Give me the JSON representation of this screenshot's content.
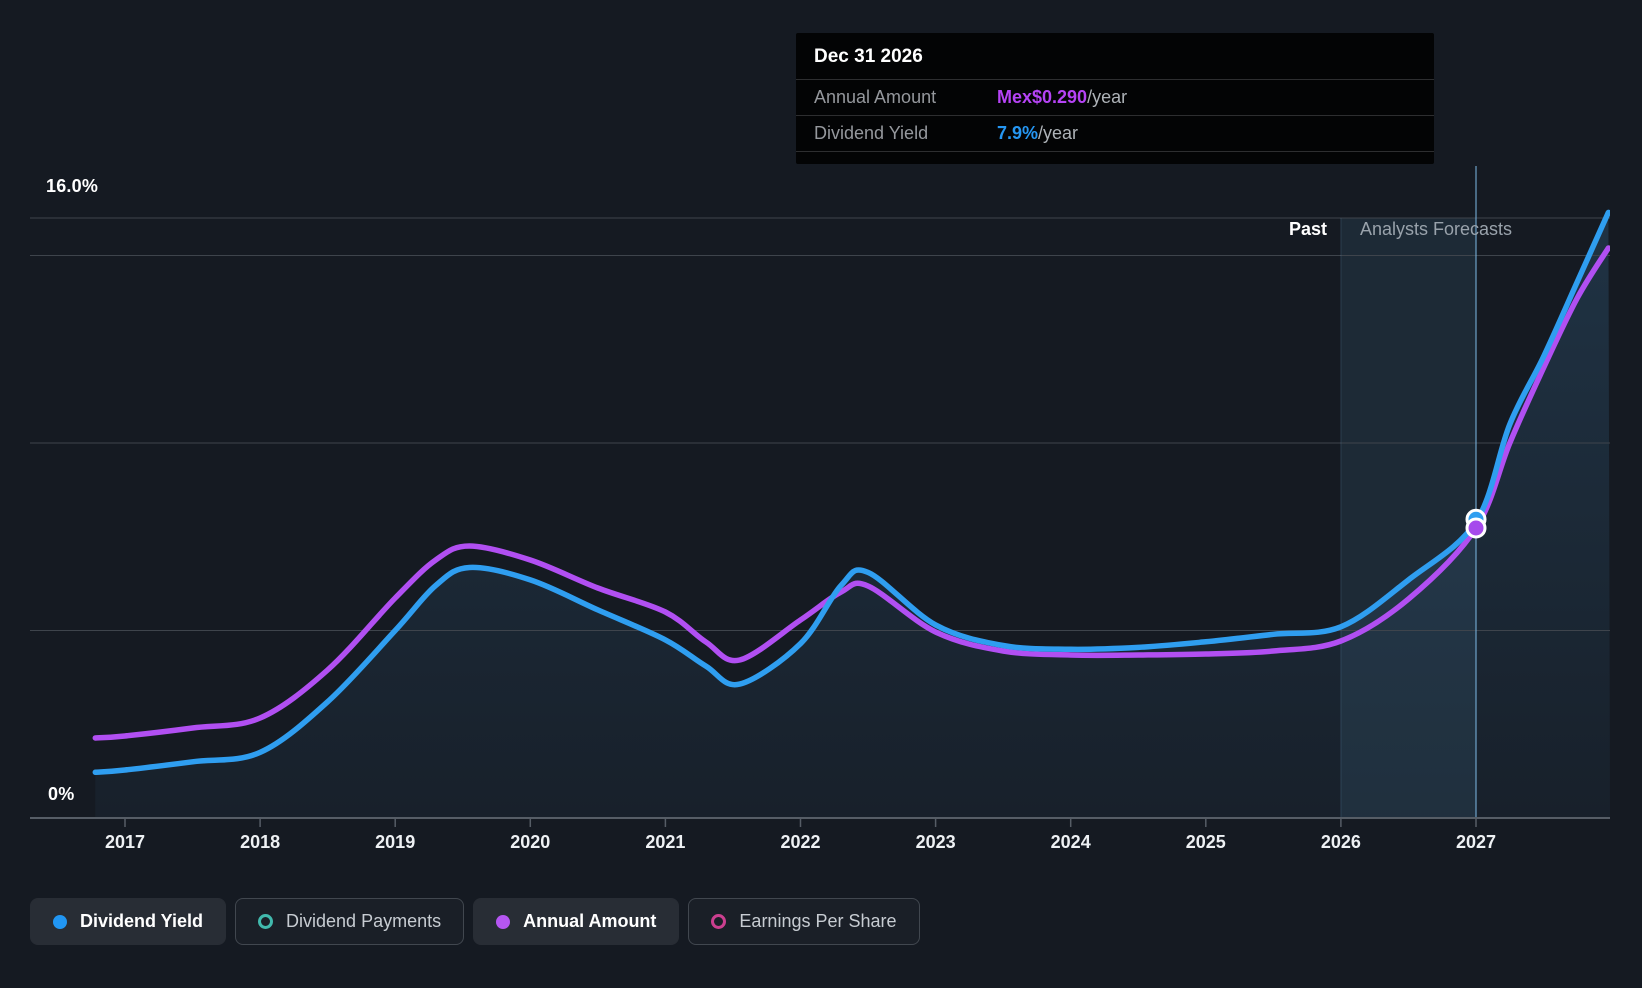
{
  "colors": {
    "background": "#151a22",
    "gridline": "#3e444c",
    "axis": "#565d66",
    "dividend_yield_blue": "#2f9ef0",
    "annual_amount_purple": "#b14ff2",
    "annual_amount_marker": "#a649ec",
    "dividend_payments_teal": "#41b9ad",
    "earnings_per_share_pink": "#cb3f8f",
    "area_fill": "#4a96cd",
    "hover_band": "#66aadf",
    "hover_line": "#7db9e6",
    "tooltip_value_purple": "#b543f5",
    "tooltip_value_blue": "#2596f2"
  },
  "tooltip": {
    "title": "Dec 31 2026",
    "rows": [
      {
        "label": "Annual Amount",
        "value": "Mex$0.290",
        "suffix": "/year",
        "value_color": "#b543f5"
      },
      {
        "label": "Dividend Yield",
        "value": "7.9%",
        "suffix": "/year",
        "value_color": "#2596f2"
      }
    ]
  },
  "chart": {
    "past_label": "Past",
    "forecast_label": "Analysts Forecasts",
    "y_axis": {
      "top_label": "16.0%",
      "bottom_label": "0%"
    }
  },
  "legend": {
    "items": [
      {
        "label": "Dividend Yield",
        "color": "#2196f3",
        "style": "filled",
        "active": true
      },
      {
        "label": "Dividend Payments",
        "color": "#41b9ad",
        "style": "ring",
        "active": false
      },
      {
        "label": "Annual Amount",
        "color": "#b556f2",
        "style": "filled",
        "active": true
      },
      {
        "label": "Earnings Per Share",
        "color": "#cb3f8f",
        "style": "ring",
        "active": false
      }
    ]
  },
  "chart_data": {
    "type": "line",
    "title": "",
    "x_axis": {
      "labels": [
        "2017",
        "2018",
        "2019",
        "2020",
        "2021",
        "2022",
        "2023",
        "2024",
        "2025",
        "2026",
        "2027"
      ],
      "first_label_year": 2017,
      "range_years": [
        2016.78,
        2027.98
      ]
    },
    "y_axis_left": {
      "label": "Dividend Yield",
      "unit": "%",
      "range": [
        0,
        16
      ],
      "gridlines_percent": [
        16,
        15,
        10,
        5
      ],
      "top_tick_label": "16.0%",
      "bottom_tick_label": "0%"
    },
    "divider": {
      "past_label": "Past",
      "forecast_label": "Analysts Forecasts",
      "forecast_start_year": 2026,
      "hover_year": 2027,
      "hover_date": "Dec 31 2026"
    },
    "legend_position": "bottom",
    "grid": true,
    "series": [
      {
        "name": "Dividend Yield",
        "scale": "percent",
        "unit": "%",
        "color": "#2f9ef0",
        "marker": {
          "year": 2027,
          "value": 7.9,
          "label": "7.9%/year"
        },
        "points": [
          [
            2016.78,
            1.22
          ],
          [
            2017,
            1.28
          ],
          [
            2017.5,
            1.5
          ],
          [
            2018,
            1.75
          ],
          [
            2018.5,
            3.1
          ],
          [
            2019,
            5.0
          ],
          [
            2019.3,
            6.2
          ],
          [
            2019.55,
            6.68
          ],
          [
            2020,
            6.35
          ],
          [
            2020.5,
            5.55
          ],
          [
            2021,
            4.75
          ],
          [
            2021.3,
            4.05
          ],
          [
            2021.55,
            3.57
          ],
          [
            2022,
            4.65
          ],
          [
            2022.3,
            6.2
          ],
          [
            2022.5,
            6.55
          ],
          [
            2023,
            5.15
          ],
          [
            2023.5,
            4.6
          ],
          [
            2024,
            4.5
          ],
          [
            2024.5,
            4.55
          ],
          [
            2025,
            4.7
          ],
          [
            2025.5,
            4.9
          ],
          [
            2026,
            5.1
          ],
          [
            2026.5,
            6.35
          ],
          [
            2027,
            7.9
          ],
          [
            2027.25,
            10.5
          ],
          [
            2027.5,
            12.3
          ],
          [
            2027.75,
            14.3
          ],
          [
            2027.98,
            16.15
          ]
        ]
      },
      {
        "name": "Annual Amount",
        "scale": "amount",
        "unit": "Mex$",
        "color": "#b14ff2",
        "marker": {
          "year": 2027,
          "value": 0.29,
          "label": "Mex$0.290/year"
        },
        "points": [
          [
            2016.78,
            0.08
          ],
          [
            2017,
            0.082
          ],
          [
            2017.5,
            0.09
          ],
          [
            2018,
            0.1
          ],
          [
            2018.5,
            0.148
          ],
          [
            2019,
            0.22
          ],
          [
            2019.3,
            0.258
          ],
          [
            2019.55,
            0.272
          ],
          [
            2020,
            0.258
          ],
          [
            2020.5,
            0.23
          ],
          [
            2021,
            0.206
          ],
          [
            2021.3,
            0.176
          ],
          [
            2021.55,
            0.158
          ],
          [
            2022,
            0.198
          ],
          [
            2022.3,
            0.226
          ],
          [
            2022.5,
            0.232
          ],
          [
            2023,
            0.186
          ],
          [
            2023.5,
            0.167
          ],
          [
            2024,
            0.163
          ],
          [
            2024.5,
            0.163
          ],
          [
            2025,
            0.164
          ],
          [
            2025.5,
            0.167
          ],
          [
            2026,
            0.177
          ],
          [
            2026.5,
            0.219
          ],
          [
            2027,
            0.29
          ],
          [
            2027.25,
            0.375
          ],
          [
            2027.5,
            0.45
          ],
          [
            2027.75,
            0.52
          ],
          [
            2027.98,
            0.57
          ]
        ]
      }
    ],
    "inactive_series": [
      {
        "name": "Dividend Payments",
        "color": "#41b9ad"
      },
      {
        "name": "Earnings Per Share",
        "color": "#cb3f8f"
      }
    ]
  }
}
